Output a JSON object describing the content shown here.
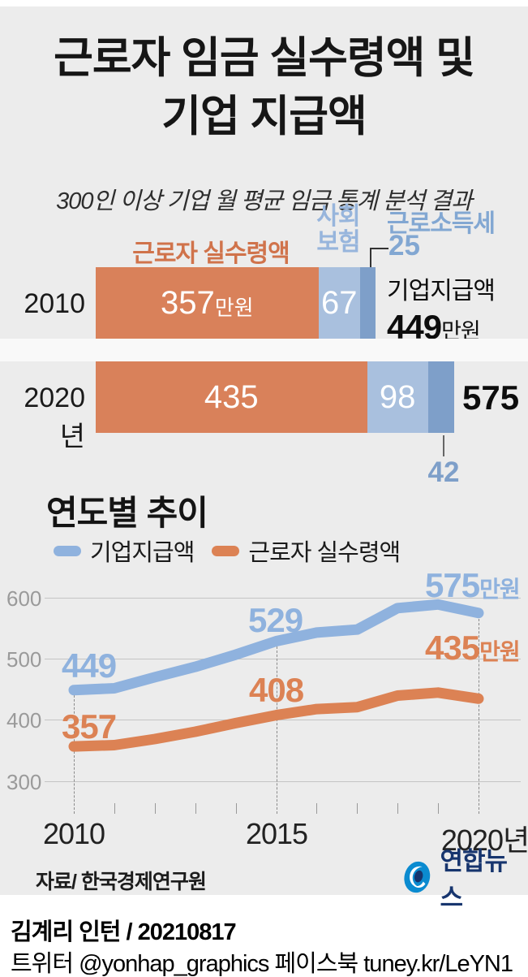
{
  "header": {
    "title_line1": "근로자 임금 실수령액 및",
    "title_line2": "기업 지급액",
    "subtitle": "300인 이상 기업 월 평균 임금 통계 분석 결과"
  },
  "bar_section": {
    "label_net_pay": "근로자 실수령액",
    "label_social_line1": "사회",
    "label_social_line2": "보험",
    "label_income_tax": "근로소득세",
    "rows": [
      {
        "year": "2010",
        "net_value": "357",
        "net_unit": "만원",
        "social_value": "67",
        "tax_callout": "25",
        "total_title": "기업지급액",
        "total_value": "449",
        "total_unit": "만원"
      },
      {
        "year": "2020년",
        "net_value": "435",
        "social_value": "98",
        "tax_callout": "42",
        "total_value": "575"
      }
    ]
  },
  "trend": {
    "heading": "연도별 추이",
    "legend": [
      {
        "label": "기업지급액",
        "color": "#8fb2de"
      },
      {
        "label": "근로자 실수령액",
        "color": "#dc8254"
      }
    ],
    "point_labels": {
      "blue_2010": "449",
      "blue_2015": "529",
      "blue_2020_num": "575",
      "blue_2020_unit": "만원",
      "orange_2010": "357",
      "orange_2015": "408",
      "orange_2020_num": "435",
      "orange_2020_unit": "만원"
    },
    "yticks": [
      "600",
      "500",
      "400",
      "300"
    ],
    "xlabels": [
      "2010",
      "2015",
      "2020년"
    ]
  },
  "chart_data": [
    {
      "type": "bar",
      "orientation": "horizontal-stacked",
      "title": "근로자 임금 실수령액 및 기업 지급액",
      "unit": "만원",
      "categories": [
        "2010",
        "2020년"
      ],
      "series": [
        {
          "name": "근로자 실수령액",
          "color": "#d9815a",
          "values": [
            357,
            435
          ]
        },
        {
          "name": "사회보험",
          "color": "#a9c0de",
          "values": [
            67,
            98
          ]
        },
        {
          "name": "근로소득세",
          "color": "#7e9fc9",
          "values": [
            25,
            42
          ]
        }
      ],
      "totals": {
        "name": "기업지급액",
        "values": [
          449,
          575
        ]
      }
    },
    {
      "type": "line",
      "title": "연도별 추이",
      "x": [
        2010,
        2011,
        2012,
        2013,
        2014,
        2015,
        2016,
        2017,
        2018,
        2019,
        2020
      ],
      "series": [
        {
          "name": "기업지급액",
          "color": "#8fb2de",
          "values": [
            449,
            452,
            470,
            487,
            507,
            529,
            543,
            548,
            583,
            589,
            575
          ]
        },
        {
          "name": "근로자 실수령액",
          "color": "#dc8254",
          "values": [
            357,
            359,
            369,
            381,
            395,
            408,
            418,
            421,
            440,
            445,
            435
          ]
        }
      ],
      "ylim": [
        280,
        620
      ],
      "yticks": [
        600,
        500,
        400,
        300
      ],
      "xtick_labels": [
        "2010",
        "2015",
        "2020년"
      ],
      "grid": "horizontal",
      "legend_position": "top-left"
    }
  ],
  "footer": {
    "source": "자료/ 한국경제연구원",
    "logo_text": "연합뉴스",
    "credit": "김계리 인턴 / 20210817",
    "social": "트위터 @yonhap_graphics  페이스북 tuney.kr/LeYN1"
  }
}
